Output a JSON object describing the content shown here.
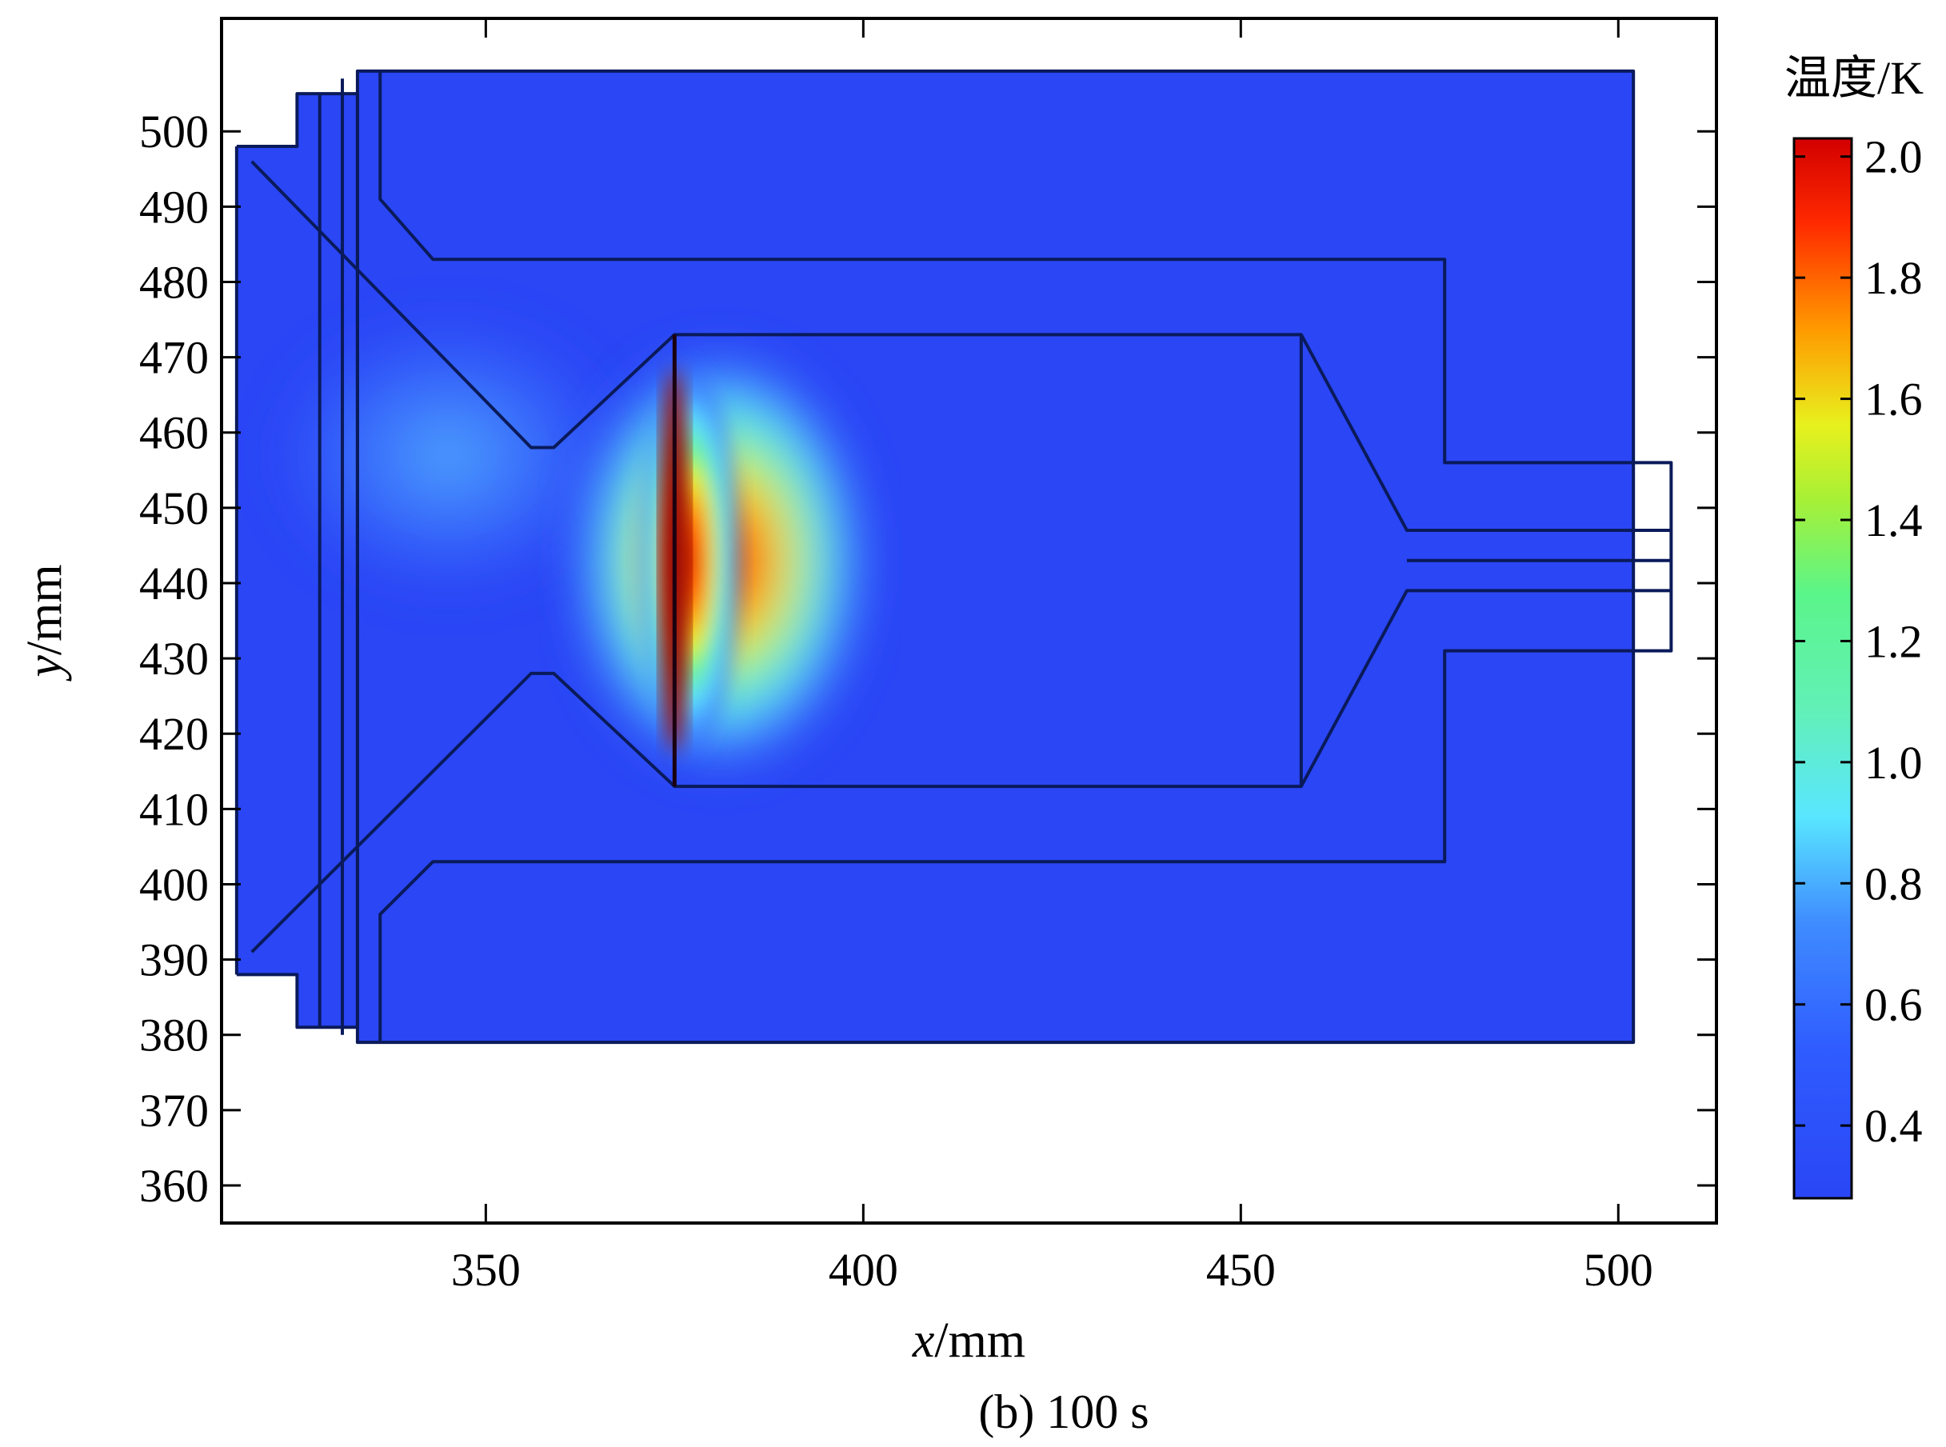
{
  "colors": {
    "background_field": "#2a46f5",
    "outline": "#0a1a5a",
    "plot_border": "#000000"
  },
  "chart_data": {
    "type": "heatmap",
    "title": "",
    "caption": "(b) 100 s",
    "xlabel_var": "x",
    "xlabel_unit": "/mm",
    "ylabel_var": "y",
    "ylabel_unit": "/mm",
    "xlim": [
      315,
      513
    ],
    "ylim": [
      355,
      515
    ],
    "x_ticks": [
      350,
      400,
      450,
      500
    ],
    "y_ticks": [
      360,
      370,
      380,
      390,
      400,
      410,
      420,
      430,
      440,
      450,
      460,
      470,
      480,
      490,
      500
    ],
    "colorbar": {
      "title": "温度/K",
      "range": [
        0.28,
        2.03
      ],
      "ticks": [
        "2.0",
        "1.8",
        "1.6",
        "1.4",
        "1.2",
        "1.0",
        "0.8",
        "0.6",
        "0.4"
      ],
      "tick_values": [
        2.0,
        1.8,
        1.6,
        1.4,
        1.2,
        1.0,
        0.8,
        0.6,
        0.4
      ],
      "colormap": [
        "#2a46f5",
        "#3f8cff",
        "#59e6ff",
        "#5af58a",
        "#e8f01e",
        "#ff9a00",
        "#ff2a00",
        "#d20000"
      ]
    },
    "hotspot": {
      "x": 375,
      "y_center": 443,
      "y_range": [
        413,
        473
      ],
      "max_value": 2.0,
      "plume": {
        "x": [
          320,
          370
        ],
        "y_center": 457,
        "value": 0.6
      }
    },
    "geometry_mm": {
      "outer_body": [
        [
          333,
          508
        ],
        [
          502,
          508
        ],
        [
          502,
          379
        ],
        [
          333,
          379
        ]
      ],
      "left_flange_outer": [
        [
          317,
          498
        ],
        [
          325,
          498
        ],
        [
          325,
          505
        ],
        [
          333,
          505
        ],
        [
          333,
          381
        ],
        [
          325,
          381
        ],
        [
          325,
          388
        ],
        [
          317,
          388
        ]
      ],
      "upper_channel": [
        [
          336,
          508
        ],
        [
          336,
          491
        ],
        [
          343,
          483
        ],
        [
          477,
          483
        ],
        [
          477,
          456
        ],
        [
          507,
          456
        ],
        [
          507,
          431
        ],
        [
          477,
          431
        ],
        [
          477,
          403
        ],
        [
          343,
          403
        ],
        [
          336,
          396
        ],
        [
          336,
          379
        ]
      ],
      "nozzle_upper": [
        [
          319,
          496
        ],
        [
          356,
          458
        ],
        [
          359,
          458
        ],
        [
          375,
          473
        ]
      ],
      "nozzle_lower": [
        [
          319,
          391
        ],
        [
          356,
          428
        ],
        [
          359,
          428
        ],
        [
          375,
          413
        ]
      ],
      "chamber": [
        [
          375,
          473
        ],
        [
          458,
          473
        ],
        [
          458,
          413
        ],
        [
          375,
          413
        ]
      ],
      "diffuser_upper": [
        [
          458,
          473
        ],
        [
          472,
          447
        ],
        [
          507,
          447
        ]
      ],
      "diffuser_lower": [
        [
          458,
          413
        ],
        [
          472,
          439
        ],
        [
          507,
          439
        ]
      ],
      "outlet_center": [
        [
          472,
          443
        ],
        [
          507,
          443
        ]
      ],
      "ribs": [
        [
          328,
          505
        ],
        [
          328,
          381
        ],
        [
          331,
          507
        ],
        [
          331,
          380
        ]
      ]
    }
  }
}
